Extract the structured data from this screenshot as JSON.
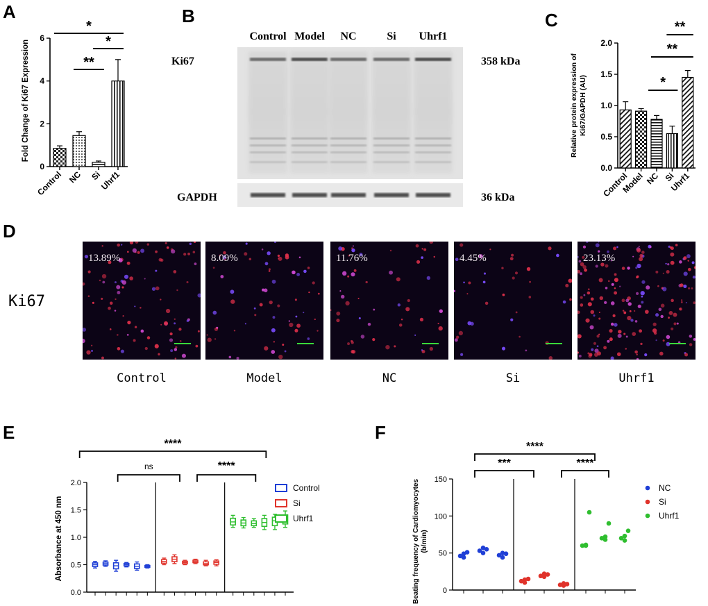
{
  "panels": {
    "A": "A",
    "B": "B",
    "C": "C",
    "D": "D",
    "E": "E",
    "F": "F"
  },
  "panel_a": {
    "chart_data": {
      "type": "bar",
      "categories": [
        "Control",
        "NC",
        "Si",
        "Uhrf1"
      ],
      "values": [
        0.85,
        1.45,
        0.2,
        4.0
      ],
      "errors": [
        0.12,
        0.18,
        0.06,
        1.0
      ],
      "ylabel": "Fold Change of Ki67 Expression",
      "ylim": [
        0,
        6
      ],
      "yticks": [
        "0",
        "2",
        "4",
        "6"
      ],
      "significance": [
        {
          "from": "Control",
          "to": "Uhrf1",
          "label": "*"
        },
        {
          "from": "Si",
          "to": "Uhrf1",
          "label": "*"
        },
        {
          "from": "NC",
          "to": "Si",
          "label": "**"
        }
      ]
    }
  },
  "panel_b": {
    "columns": [
      "Control",
      "Model",
      "NC",
      "Si",
      "Uhrf1"
    ],
    "rows": [
      {
        "protein": "Ki67",
        "size": "358 kDa"
      },
      {
        "protein": "GAPDH",
        "size": "36 kDa"
      }
    ]
  },
  "panel_c": {
    "chart_data": {
      "type": "bar",
      "categories": [
        "Control",
        "Model",
        "NC",
        "Si",
        "Uhrf1"
      ],
      "values": [
        0.93,
        0.91,
        0.78,
        0.55,
        1.45
      ],
      "errors": [
        0.13,
        0.04,
        0.06,
        0.12,
        0.11
      ],
      "ylabel_line1": "Relative protein expression of",
      "ylabel_line2": "Ki67/GAPDH  (AU)",
      "ylim": [
        0,
        2.0
      ],
      "yticks": [
        "0.0",
        "0.5",
        "1.0",
        "1.5",
        "2.0"
      ],
      "significance": [
        {
          "from": "Si",
          "to": "Uhrf1",
          "label": "**"
        },
        {
          "from": "NC",
          "to": "Uhrf1",
          "label": "**"
        },
        {
          "from": "NC",
          "to": "Si",
          "label": "*"
        }
      ]
    }
  },
  "panel_d": {
    "row_label": "Ki67",
    "images": [
      {
        "label": "Control",
        "percent": "13.89%",
        "density": 0.9
      },
      {
        "label": "Model",
        "percent": "8.09%",
        "density": 0.6
      },
      {
        "label": "NC",
        "percent": "11.76%",
        "density": 0.5
      },
      {
        "label": "Si",
        "percent": "4.45%",
        "density": 0.35
      },
      {
        "label": "Uhrf1",
        "percent": "23.13%",
        "density": 1.6
      }
    ]
  },
  "panel_e": {
    "chart_data": {
      "type": "box",
      "ylabel": "Absorbance at 450 nm",
      "ylim": [
        0,
        2.0
      ],
      "yticks": [
        "0.0",
        "0.5",
        "1.0",
        "1.5",
        "2.0"
      ],
      "series": [
        {
          "name": "Control",
          "color": "#1f3fd6",
          "medians": [
            0.5,
            0.52,
            0.48,
            0.5,
            0.47,
            0.47
          ],
          "lows": [
            0.44,
            0.47,
            0.38,
            0.46,
            0.4,
            0.44
          ],
          "highs": [
            0.56,
            0.57,
            0.58,
            0.54,
            0.55,
            0.5
          ]
        },
        {
          "name": "Si",
          "color": "#e0332b",
          "medians": [
            0.56,
            0.6,
            0.54,
            0.56,
            0.52,
            0.54
          ],
          "lows": [
            0.5,
            0.52,
            0.5,
            0.52,
            0.48,
            0.48
          ],
          "highs": [
            0.62,
            0.68,
            0.58,
            0.6,
            0.58,
            0.59
          ]
        },
        {
          "name": "Uhrf1",
          "color": "#2fbe2f",
          "medians": [
            1.28,
            1.26,
            1.25,
            1.27,
            1.3,
            1.32
          ],
          "lows": [
            1.18,
            1.17,
            1.18,
            1.14,
            1.14,
            1.18
          ],
          "highs": [
            1.4,
            1.36,
            1.34,
            1.4,
            1.42,
            1.48
          ]
        }
      ],
      "significance": [
        {
          "label": "****"
        },
        {
          "label": "ns"
        },
        {
          "label": "****"
        }
      ]
    }
  },
  "panel_f": {
    "chart_data": {
      "type": "scatter",
      "ylabel_line1": "Beating frequency of Cardiomyocytes",
      "ylabel_line2": "(b/min)",
      "ylim": [
        0,
        150
      ],
      "yticks": [
        "0",
        "50",
        "100",
        "150"
      ],
      "series": [
        {
          "name": "NC",
          "color": "#1f3fd6",
          "groups": [
            [
              46,
              49,
              44,
              51
            ],
            [
              53,
              57,
              50,
              55
            ],
            [
              47,
              50,
              44,
              49
            ]
          ]
        },
        {
          "name": "Si",
          "color": "#e0332b",
          "groups": [
            [
              12,
              14,
              10,
              15
            ],
            [
              19,
              22,
              18,
              21
            ],
            [
              7,
              9,
              6,
              8
            ]
          ]
        },
        {
          "name": "Uhrf1",
          "color": "#2fbe2f",
          "groups": [
            [
              60,
              61,
              60,
              105
            ],
            [
              70,
              72,
              68,
              90
            ],
            [
              70,
              67,
              73,
              80
            ]
          ]
        }
      ],
      "significance": [
        {
          "label": "****"
        },
        {
          "label": "***"
        },
        {
          "label": "****"
        }
      ]
    }
  }
}
